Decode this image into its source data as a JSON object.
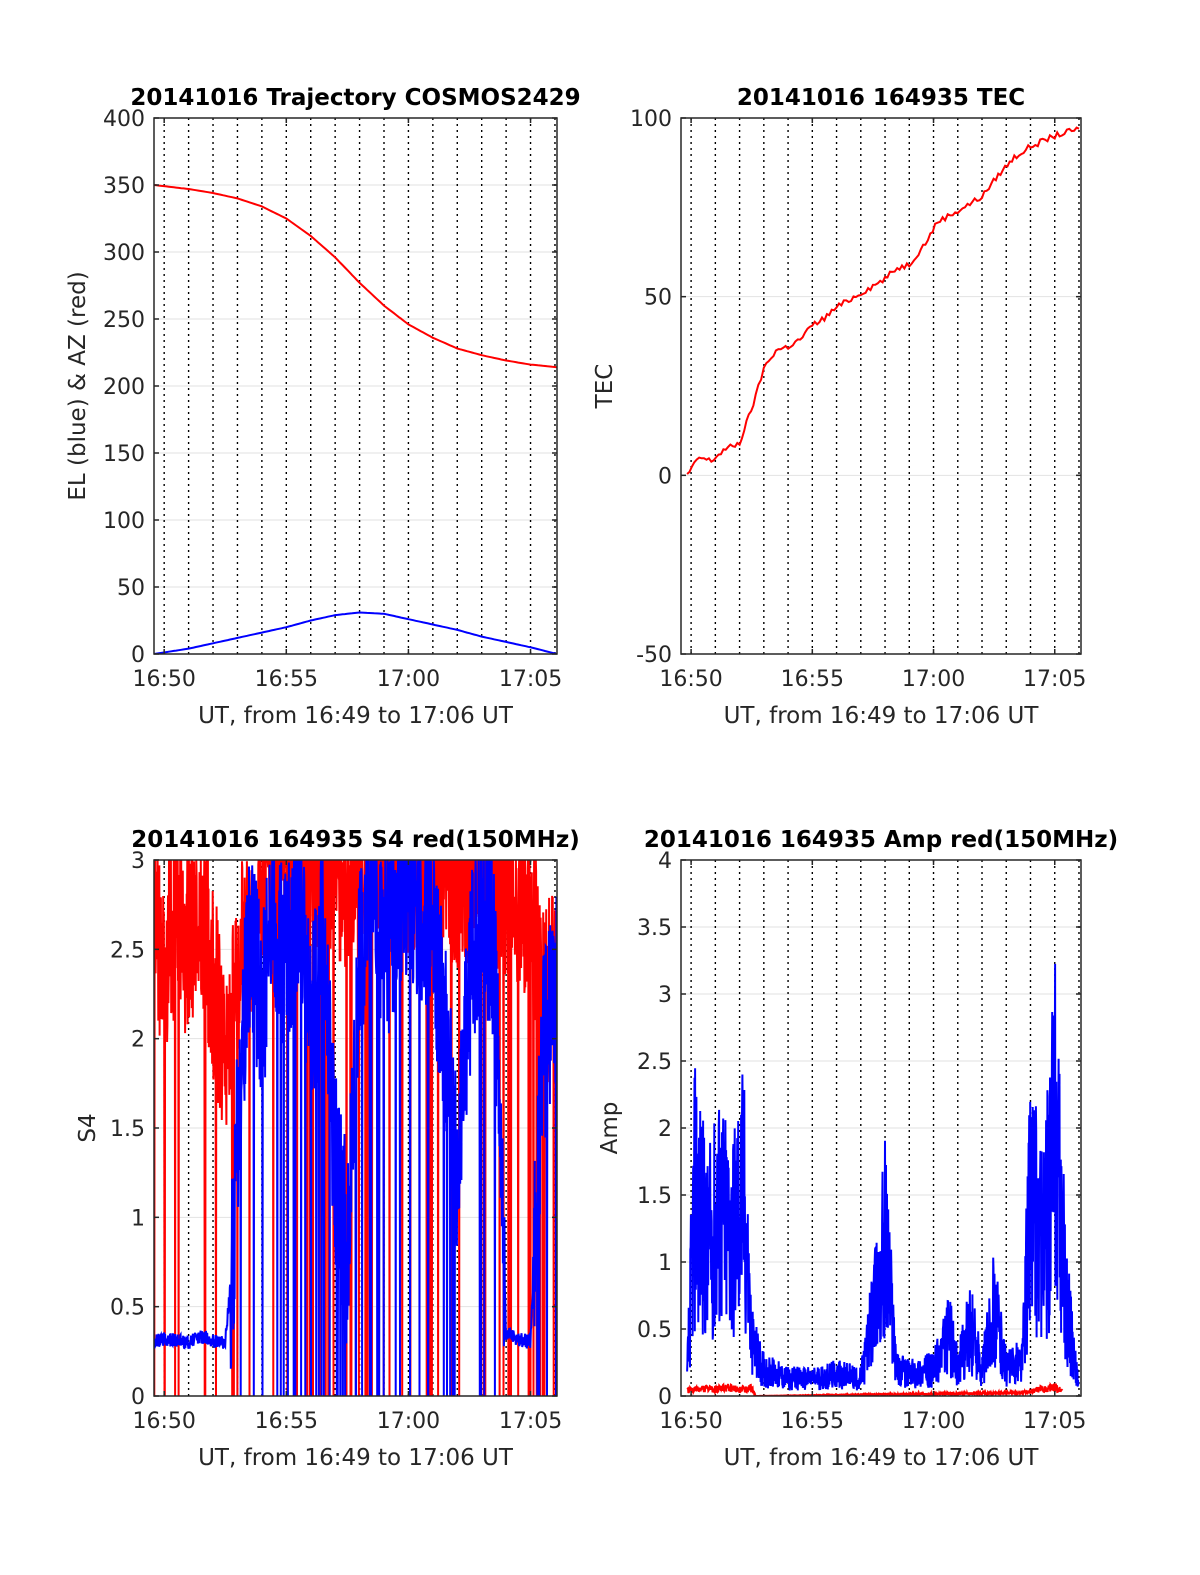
{
  "figure_date": "20141016",
  "chart_data": [
    {
      "id": "trajectory",
      "type": "line",
      "title": "20141016 Trajectory COSMOS2429",
      "xlabel": "UT, from 16:49 to 17:06 UT",
      "ylabel": "EL (blue) & AZ (red)",
      "xlim": [
        "16:49:35",
        "17:06:05"
      ],
      "ylim": [
        0,
        400
      ],
      "x_ticks": [
        "16:50",
        "16:55",
        "17:00",
        "17:05"
      ],
      "y_ticks": [
        "0",
        "50",
        "100",
        "150",
        "200",
        "250",
        "300",
        "350",
        "400"
      ],
      "grid": true,
      "vertical_dotted_lines_every_minutes": 1,
      "series": [
        {
          "color": "#ff0000",
          "x": [
            "16:49:35",
            "16:51:00",
            "16:52:00",
            "16:53:00",
            "16:54:00",
            "16:55:00",
            "16:56:00",
            "16:57:00",
            "16:58:00",
            "16:59:00",
            "17:00:00",
            "17:01:00",
            "17:02:00",
            "17:03:00",
            "17:04:00",
            "17:05:00",
            "17:06:05"
          ],
          "y": [
            350,
            347,
            344,
            340,
            334,
            325,
            312,
            296,
            277,
            260,
            246,
            236,
            228,
            223,
            219,
            216,
            214
          ]
        },
        {
          "color": "#0000ff",
          "x": [
            "16:49:35",
            "16:51:00",
            "16:52:00",
            "16:53:00",
            "16:54:00",
            "16:55:00",
            "16:56:00",
            "16:57:00",
            "16:58:00",
            "16:59:00",
            "17:00:00",
            "17:01:00",
            "17:02:00",
            "17:03:00",
            "17:04:00",
            "17:05:00",
            "17:06:05"
          ],
          "y": [
            0,
            4,
            8,
            12,
            16,
            20,
            25,
            29,
            31,
            30,
            26,
            22,
            18,
            13,
            9,
            5,
            0
          ]
        }
      ]
    },
    {
      "id": "tec",
      "type": "line",
      "title": "20141016 164935 TEC",
      "xlabel": "UT, from 16:49 to 17:06 UT",
      "ylabel": "TEC",
      "xlim": [
        "16:49:35",
        "17:06:05"
      ],
      "ylim": [
        -50,
        100
      ],
      "x_ticks": [
        "16:50",
        "16:55",
        "17:00",
        "17:05"
      ],
      "y_ticks": [
        "-50",
        "0",
        "50",
        "100"
      ],
      "grid": true,
      "vertical_dotted_lines_every_minutes": 1,
      "series": [
        {
          "color": "#ff0000",
          "x": [
            "16:49:50",
            "16:50:20",
            "16:50:50",
            "16:51:20",
            "16:52:00",
            "16:52:40",
            "16:53:00",
            "16:53:30",
            "16:54:00",
            "16:54:30",
            "16:55:00",
            "16:55:30",
            "16:56:00",
            "16:57:00",
            "16:58:00",
            "16:58:30",
            "16:59:00",
            "16:59:40",
            "17:00:10",
            "17:01:00",
            "17:02:00",
            "17:02:40",
            "17:03:20",
            "17:04:00",
            "17:05:00",
            "17:06:00"
          ],
          "y": [
            0,
            5,
            4,
            7,
            9,
            22,
            30,
            35,
            36,
            38,
            42,
            44,
            47,
            51,
            55,
            58,
            59,
            65,
            71,
            74,
            78,
            84,
            89,
            92,
            95,
            97
          ]
        }
      ]
    },
    {
      "id": "s4",
      "type": "line",
      "title": "20141016 164935 S4 red(150MHz)",
      "xlabel": "UT, from 16:49 to 17:06 UT",
      "ylabel": "S4",
      "xlim": [
        "16:49:35",
        "17:06:05"
      ],
      "ylim": [
        0,
        3
      ],
      "x_ticks": [
        "16:50",
        "16:55",
        "17:00",
        "17:05"
      ],
      "y_ticks": [
        "0",
        "0.5",
        "1",
        "1.5",
        "2",
        "2.5",
        "3"
      ],
      "grid": true,
      "vertical_dotted_lines_every_minutes": 1,
      "series": [
        {
          "color": "#ff0000",
          "x": [
            "16:49:35",
            "16:50:00",
            "16:50:30",
            "16:51:00",
            "16:51:30",
            "16:52:00",
            "16:52:40",
            "16:53:00",
            "16:54:00",
            "16:55:00",
            "16:56:00",
            "16:57:00",
            "16:58:00",
            "16:59:00",
            "17:00:00",
            "17:01:00",
            "17:02:00",
            "17:03:00",
            "17:04:00",
            "17:05:00",
            "17:05:40",
            "17:06:05"
          ],
          "y": [
            2.6,
            2.4,
            2.7,
            2.5,
            2.8,
            2.3,
            1.9,
            2.4,
            2.9,
            3.0,
            3.0,
            2.9,
            3.0,
            3.0,
            3.0,
            3.0,
            2.9,
            3.0,
            2.9,
            2.7,
            2.2,
            2.5
          ]
        },
        {
          "color": "#0000ff",
          "x": [
            "16:49:35",
            "16:50:00",
            "16:50:30",
            "16:51:00",
            "16:51:30",
            "16:52:00",
            "16:52:30",
            "16:52:50",
            "16:53:00",
            "16:53:30",
            "16:54:00",
            "16:54:30",
            "16:55:00",
            "16:55:30",
            "16:56:00",
            "16:56:30",
            "16:57:00",
            "16:57:30",
            "16:58:00",
            "16:58:30",
            "16:59:00",
            "17:00:00",
            "17:01:00",
            "17:01:30",
            "17:02:00",
            "17:02:30",
            "17:03:00",
            "17:03:30",
            "17:04:00",
            "17:04:30",
            "17:05:00",
            "17:05:30",
            "17:06:05"
          ],
          "y": [
            0.3,
            0.32,
            0.31,
            0.3,
            0.33,
            0.31,
            0.3,
            0.8,
            1.5,
            2.6,
            2.2,
            2.7,
            2.4,
            2.8,
            2.0,
            2.6,
            1.3,
            0.8,
            2.4,
            2.8,
            2.5,
            2.9,
            2.6,
            2.0,
            1.2,
            2.3,
            2.8,
            2.5,
            0.35,
            0.32,
            0.3,
            1.9,
            2.3
          ]
        }
      ]
    },
    {
      "id": "amp",
      "type": "line",
      "title": "20141016 164935 Amp red(150MHz)",
      "xlabel": "UT, from 16:49 to 17:06 UT",
      "ylabel": "Amp",
      "xlim": [
        "16:49:35",
        "17:06:05"
      ],
      "ylim": [
        0,
        4
      ],
      "x_ticks": [
        "16:50",
        "16:55",
        "17:00",
        "17:05"
      ],
      "y_ticks": [
        "0",
        "0.5",
        "1",
        "1.5",
        "2",
        "2.5",
        "3",
        "3.5",
        "4"
      ],
      "grid": true,
      "vertical_dotted_lines_every_minutes": 1,
      "series": [
        {
          "color": "#0000ff",
          "x": [
            "16:49:50",
            "16:50:10",
            "16:50:40",
            "16:51:10",
            "16:51:40",
            "16:52:10",
            "16:52:30",
            "16:53:00",
            "16:54:00",
            "16:55:00",
            "16:56:00",
            "16:57:00",
            "16:57:40",
            "16:58:00",
            "16:58:30",
            "16:59:00",
            "17:00:00",
            "17:00:40",
            "17:01:00",
            "17:01:30",
            "17:02:00",
            "17:02:30",
            "17:03:00",
            "17:03:40",
            "17:04:00",
            "17:04:30",
            "17:05:00",
            "17:05:30",
            "17:06:00"
          ],
          "y": [
            0.2,
            2.4,
            1.6,
            2.1,
            1.8,
            2.3,
            0.6,
            0.3,
            0.2,
            0.2,
            0.25,
            0.2,
            1.1,
            1.8,
            0.3,
            0.25,
            0.3,
            0.7,
            0.3,
            0.8,
            0.3,
            1.0,
            0.3,
            0.4,
            2.4,
            1.6,
            3.0,
            1.0,
            0.1
          ]
        },
        {
          "color": "#ff0000",
          "x": [
            "16:49:50",
            "16:50:30",
            "16:51:00",
            "16:51:30",
            "16:52:00",
            "16:52:30",
            "16:52:40",
            "17:03:50",
            "17:04:20",
            "17:05:00",
            "17:05:20"
          ],
          "y": [
            0.05,
            0.07,
            0.06,
            0.08,
            0.06,
            0.07,
            0.0,
            0.03,
            0.06,
            0.08,
            0.05
          ]
        }
      ]
    }
  ]
}
